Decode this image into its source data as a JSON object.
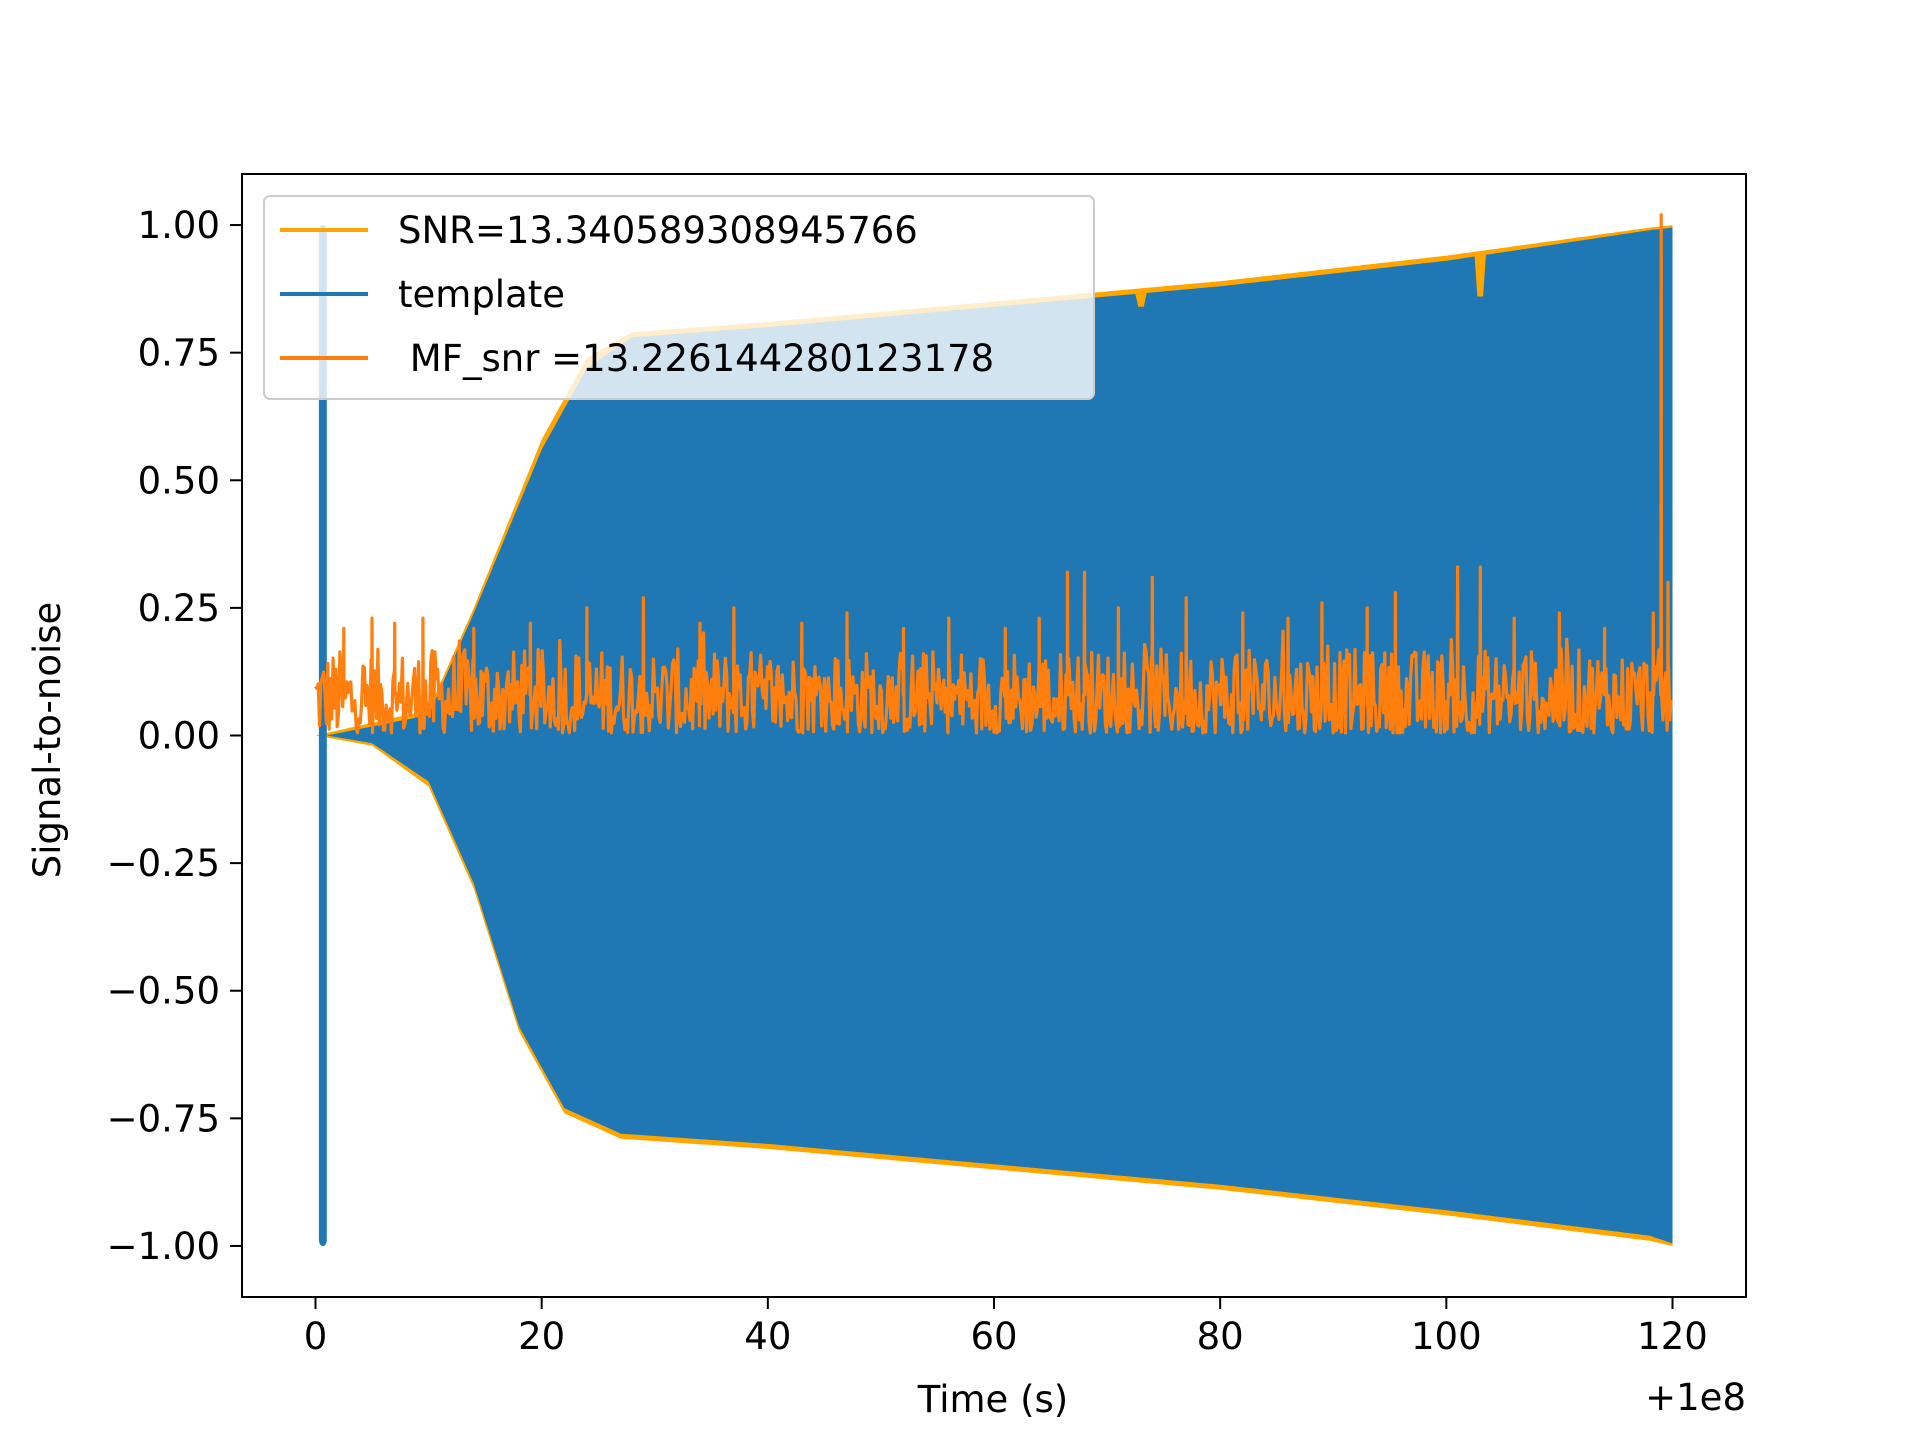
{
  "chart_data": {
    "type": "line",
    "title": "",
    "xlabel": "Time (s)",
    "ylabel": "Signal-to-noise",
    "x_offset_label": "+1e8",
    "xlim": [
      -6.5,
      126.5
    ],
    "ylim": [
      -1.1,
      1.1
    ],
    "x_ticks": [
      0,
      20,
      40,
      60,
      80,
      100,
      120
    ],
    "x_tick_labels": [
      "0",
      "20",
      "40",
      "60",
      "80",
      "100",
      "120"
    ],
    "y_ticks": [
      1.0,
      0.75,
      0.5,
      0.25,
      0.0,
      -0.25,
      -0.5,
      -0.75,
      -1.0
    ],
    "y_tick_labels": [
      "1.00",
      "0.75",
      "0.50",
      "0.25",
      "0.00",
      "−0.25",
      "−0.50",
      "−0.75",
      "−1.00"
    ],
    "grid": false,
    "legend_position": "upper-left",
    "series": [
      {
        "name": "SNR=13.340589308945766",
        "color": "#ffa500",
        "envelope_upper": [
          [
            0,
            0.0
          ],
          [
            10,
            0.05
          ],
          [
            14,
            0.25
          ],
          [
            20,
            0.58
          ],
          [
            24,
            0.74
          ],
          [
            28,
            0.79
          ],
          [
            40,
            0.81
          ],
          [
            60,
            0.85
          ],
          [
            80,
            0.89
          ],
          [
            100,
            0.94
          ],
          [
            118,
            0.995
          ],
          [
            120,
            1.0
          ]
        ],
        "envelope_lower": [
          [
            0,
            0.0
          ],
          [
            5,
            -0.02
          ],
          [
            10,
            -0.1
          ],
          [
            14,
            -0.3
          ],
          [
            18,
            -0.58
          ],
          [
            22,
            -0.74
          ],
          [
            27,
            -0.79
          ],
          [
            40,
            -0.81
          ],
          [
            60,
            -0.85
          ],
          [
            80,
            -0.89
          ],
          [
            100,
            -0.94
          ],
          [
            118,
            -0.99
          ],
          [
            120,
            -1.0
          ]
        ]
      },
      {
        "name": "template",
        "color": "#1f77b4",
        "spike_x": [
          0.3,
          1.0
        ],
        "spike_range": [
          -1.0,
          1.0
        ],
        "envelope_upper": [
          [
            1,
            0.0
          ],
          [
            10,
            0.04
          ],
          [
            14,
            0.24
          ],
          [
            20,
            0.56
          ],
          [
            24,
            0.72
          ],
          [
            28,
            0.78
          ],
          [
            40,
            0.8
          ],
          [
            60,
            0.84
          ],
          [
            80,
            0.88
          ],
          [
            100,
            0.93
          ],
          [
            118,
            0.99
          ],
          [
            120,
            0.995
          ]
        ],
        "envelope_lower": [
          [
            1,
            0.0
          ],
          [
            5,
            -0.015
          ],
          [
            10,
            -0.09
          ],
          [
            14,
            -0.29
          ],
          [
            18,
            -0.57
          ],
          [
            22,
            -0.73
          ],
          [
            27,
            -0.78
          ],
          [
            40,
            -0.8
          ],
          [
            60,
            -0.84
          ],
          [
            80,
            -0.88
          ],
          [
            100,
            -0.93
          ],
          [
            118,
            -0.98
          ],
          [
            120,
            -0.995
          ]
        ],
        "dips": [
          [
            103,
            0.86
          ],
          [
            103.6,
            -0.945
          ],
          [
            71,
            -0.935
          ],
          [
            73,
            0.84
          ]
        ]
      },
      {
        "name": " MF_snr =13.226144280123178",
        "color": "#ff7f0e",
        "baseline": 0.08,
        "noise_range": [
          0.0,
          0.24
        ],
        "peaks": [
          [
            2.5,
            0.21
          ],
          [
            5,
            0.23
          ],
          [
            7,
            0.22
          ],
          [
            9.5,
            0.23
          ],
          [
            14,
            0.21
          ],
          [
            19,
            0.22
          ],
          [
            24,
            0.25
          ],
          [
            29,
            0.27
          ],
          [
            34,
            0.22
          ],
          [
            37,
            0.25
          ],
          [
            43,
            0.22
          ],
          [
            47,
            0.24
          ],
          [
            52,
            0.21
          ],
          [
            56,
            0.23
          ],
          [
            61,
            0.21
          ],
          [
            64,
            0.23
          ],
          [
            66.5,
            0.32
          ],
          [
            68,
            0.32
          ],
          [
            71,
            0.25
          ],
          [
            74,
            0.31
          ],
          [
            77,
            0.27
          ],
          [
            82,
            0.24
          ],
          [
            86,
            0.23
          ],
          [
            89,
            0.26
          ],
          [
            93,
            0.25
          ],
          [
            95.5,
            0.28
          ],
          [
            101,
            0.33
          ],
          [
            103,
            0.33
          ],
          [
            106,
            0.23
          ],
          [
            110,
            0.24
          ],
          [
            114,
            0.21
          ],
          [
            118.3,
            0.24
          ],
          [
            119,
            1.02
          ],
          [
            119.6,
            0.3
          ]
        ]
      }
    ]
  }
}
